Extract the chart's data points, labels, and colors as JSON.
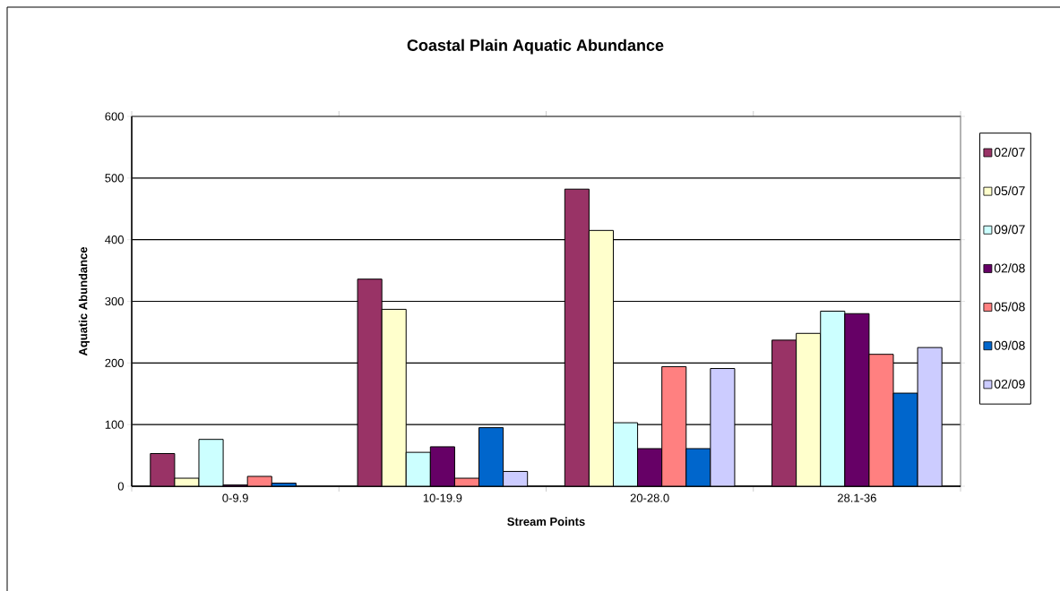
{
  "chart_data": {
    "type": "bar",
    "title": "Coastal  Plain Aquatic Abundance",
    "xlabel": "Stream Points",
    "ylabel": "Aquatic Abundance",
    "categories": [
      "0-9.9",
      "10-19.9",
      "20-28.0",
      "28.1-36"
    ],
    "series": [
      {
        "name": "02/07",
        "color": "#993366",
        "values": [
          53,
          336,
          482,
          237
        ]
      },
      {
        "name": "05/07",
        "color": "#ffffcc",
        "values": [
          13,
          287,
          415,
          248
        ]
      },
      {
        "name": "09/07",
        "color": "#ccffff",
        "values": [
          76,
          55,
          103,
          284
        ]
      },
      {
        "name": "02/08",
        "color": "#660066",
        "values": [
          2,
          64,
          61,
          280
        ]
      },
      {
        "name": "05/08",
        "color": "#ff8080",
        "values": [
          16,
          13,
          194,
          214
        ]
      },
      {
        "name": "09/08",
        "color": "#0066cc",
        "values": [
          5,
          95,
          61,
          151
        ]
      },
      {
        "name": "02/09",
        "color": "#ccccff",
        "values": [
          null,
          24,
          191,
          225
        ]
      }
    ],
    "ylim": [
      0,
      600
    ],
    "yticks": [
      0,
      100,
      200,
      300,
      400,
      500,
      600
    ],
    "grid": "y",
    "legend": "right"
  }
}
